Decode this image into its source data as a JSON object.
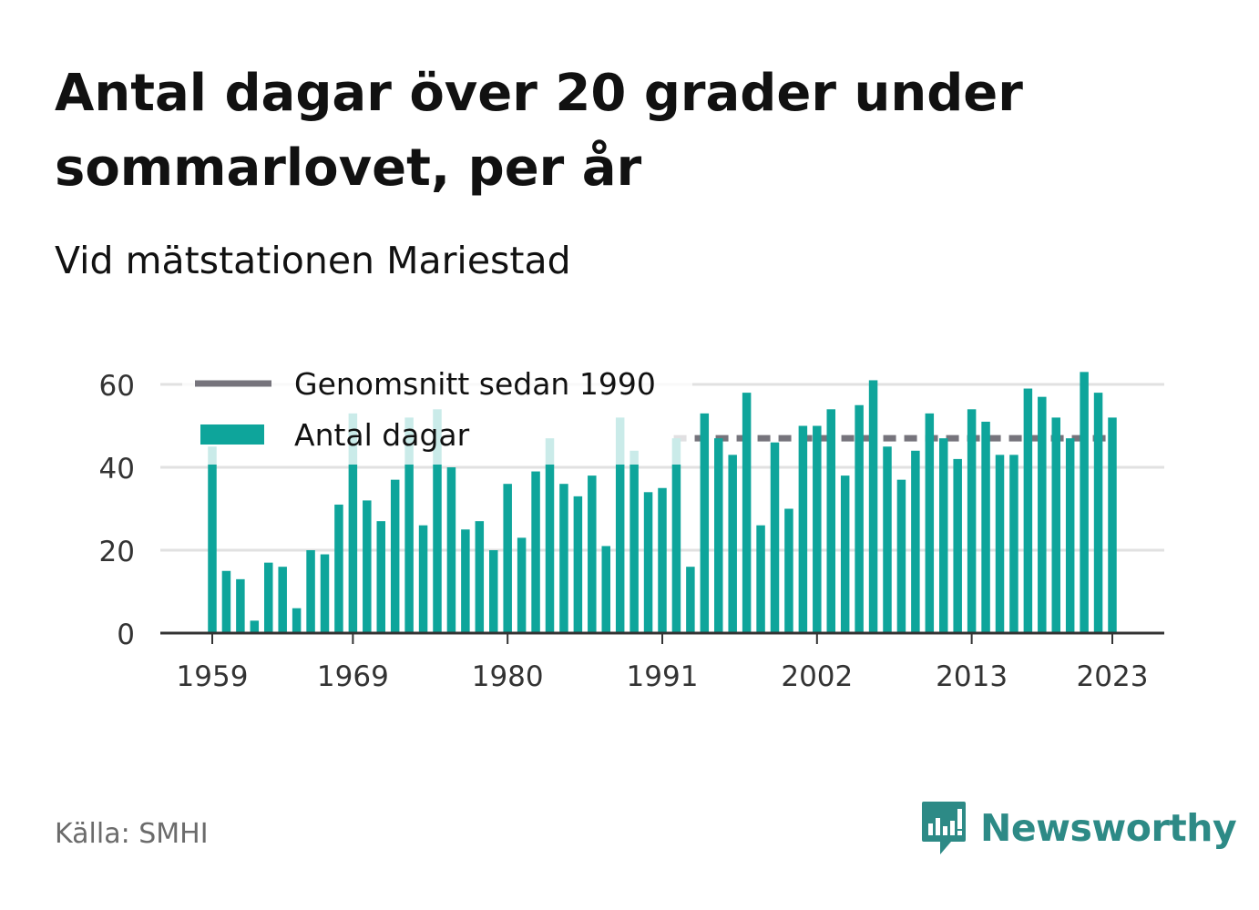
{
  "title": "Antal dagar över 20 grader under sommarlovet, per år",
  "subtitle": "Vid mätstationen Mariestad",
  "source": "Källa: SMHI",
  "brand": {
    "name": "Newsworthy",
    "icon": "newsworthy-logo-icon",
    "color": "#2d8a86"
  },
  "colors": {
    "bar": "#0ea59b",
    "average_line": "#76747c",
    "grid": "#e1e1e1",
    "axis": "#333333"
  },
  "chart_data": {
    "type": "bar",
    "title": "Antal dagar över 20 grader under sommarlovet, per år",
    "subtitle": "Vid mätstationen Mariestad",
    "xlabel": "",
    "ylabel": "",
    "x_tick_labels": [
      "1959",
      "1969",
      "1980",
      "1991",
      "2002",
      "2013",
      "2023"
    ],
    "y_ticks": [
      0,
      20,
      40,
      60
    ],
    "ylim": [
      0,
      63
    ],
    "grid": true,
    "legend_position": "top-left",
    "categories": [
      1959,
      1960,
      1961,
      1962,
      1963,
      1964,
      1965,
      1966,
      1967,
      1968,
      1969,
      1970,
      1971,
      1972,
      1973,
      1974,
      1975,
      1976,
      1977,
      1978,
      1979,
      1980,
      1981,
      1982,
      1983,
      1984,
      1985,
      1986,
      1987,
      1988,
      1989,
      1990,
      1991,
      1992,
      1993,
      1994,
      1995,
      1996,
      1997,
      1998,
      1999,
      2000,
      2001,
      2002,
      2003,
      2004,
      2005,
      2006,
      2007,
      2008,
      2009,
      2010,
      2011,
      2012,
      2013,
      2014,
      2015,
      2016,
      2017,
      2018,
      2019,
      2020,
      2021,
      2022,
      2023
    ],
    "series": [
      {
        "name": "Antal dagar",
        "values": [
          45,
          15,
          13,
          3,
          17,
          16,
          6,
          20,
          19,
          31,
          53,
          32,
          27,
          37,
          52,
          26,
          54,
          40,
          25,
          27,
          20,
          36,
          23,
          39,
          47,
          36,
          33,
          38,
          21,
          52,
          44,
          34,
          35,
          47,
          16,
          53,
          47,
          43,
          58,
          26,
          46,
          30,
          50,
          50,
          54,
          38,
          55,
          61,
          45,
          37,
          44,
          53,
          47,
          42,
          54,
          51,
          43,
          43,
          59,
          57,
          52,
          47,
          63,
          58,
          52
        ]
      },
      {
        "name": "Genomsnitt sedan 1990",
        "type": "line",
        "start": 1990,
        "value": 47
      }
    ]
  }
}
